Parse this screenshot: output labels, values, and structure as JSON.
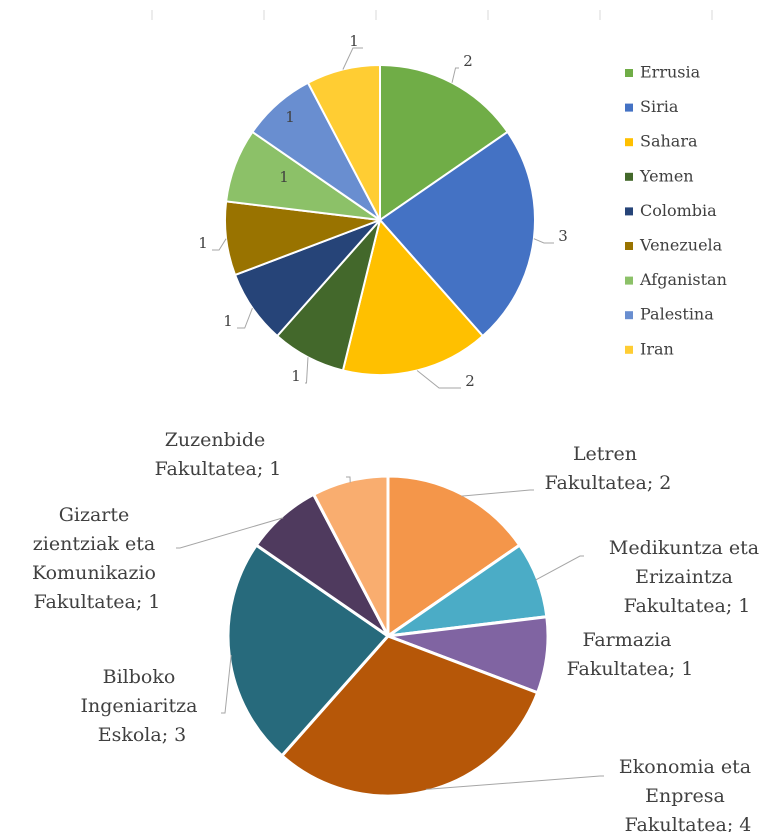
{
  "chart_data": [
    {
      "type": "pie",
      "categories": [
        "Errusia",
        "Siria",
        "Sahara",
        "Yemen",
        "Colombia",
        "Venezuela",
        "Afganistan",
        "Palestina",
        "Iran"
      ],
      "values": [
        2,
        3,
        2,
        1,
        1,
        1,
        1,
        1,
        1
      ],
      "colors": [
        "#70ad47",
        "#4472c4",
        "#ffc000",
        "#43682b",
        "#264478",
        "#997300",
        "#8cc168",
        "#698ed0",
        "#ffcd33"
      ],
      "legend": "right"
    },
    {
      "type": "pie",
      "categories": [
        "Letren Fakultatea",
        "Medikuntza eta Erizaintza Fakultatea",
        "Farmazia Fakultatea",
        "Ekonomia eta Enpresa Fakultatea",
        "Bilboko Ingeniaritza Eskola",
        "Gizarte zientziak eta Komunikazio Fakultatea",
        "Zuzenbide Fakultatea"
      ],
      "values": [
        2,
        1,
        1,
        4,
        3,
        1,
        1
      ],
      "value_labels": [
        "Letren Fakultatea; 2",
        "Medikuntza eta Erizaintza Fakultatea; 1",
        "Farmazia Fakultatea; 1",
        "Ekonomia eta Enpresa Fakultatea; 4",
        "Bilboko Ingeniaritza Eskola; 3",
        "Gizarte zientziak eta Komunikazio Fakultatea; 1",
        "Zuzenbide Fakultatea; 1"
      ],
      "colors": [
        "#f4964a",
        "#4bacc6",
        "#8064a2",
        "#b65708",
        "#276a7c",
        "#4f3a5e",
        "#f9ad6f"
      ]
    }
  ]
}
